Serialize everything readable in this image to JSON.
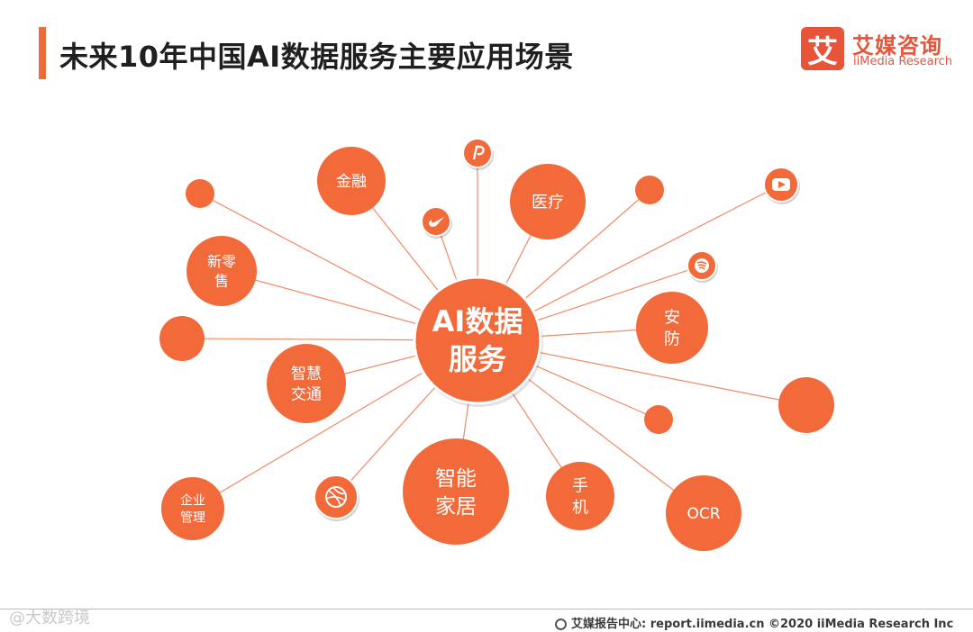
{
  "header": {
    "title": "未来10年中国AI数据服务主要应用场景"
  },
  "logo": {
    "mark": "艾",
    "name_cn": "艾媒咨询",
    "name_en": "iiMedia Research"
  },
  "diagram": {
    "center": {
      "lines": [
        "AI数据",
        "服务"
      ]
    },
    "colors": {
      "node": "#f26a3a",
      "line": "#f08a66",
      "icon_ring": "#ffffff"
    },
    "nodes": [
      {
        "id": "finance",
        "lines": [
          "金融"
        ]
      },
      {
        "id": "medical",
        "lines": [
          "医疗"
        ]
      },
      {
        "id": "new-retail",
        "lines": [
          "新零",
          "售"
        ]
      },
      {
        "id": "security",
        "lines": [
          "安",
          "防"
        ]
      },
      {
        "id": "smart-traffic",
        "lines": [
          "智慧",
          "交通"
        ]
      },
      {
        "id": "smart-home",
        "lines": [
          "智能",
          "家居"
        ]
      },
      {
        "id": "phone",
        "lines": [
          "手",
          "机"
        ]
      },
      {
        "id": "enterprise-mgmt",
        "lines": [
          "企业",
          "管理"
        ]
      },
      {
        "id": "ocr",
        "lines": [
          "OCR"
        ]
      },
      {
        "id": "blank-1",
        "lines": []
      },
      {
        "id": "blank-2",
        "lines": []
      },
      {
        "id": "blank-3",
        "lines": []
      },
      {
        "id": "blank-4",
        "lines": []
      },
      {
        "id": "blank-5",
        "lines": []
      }
    ],
    "icons": [
      {
        "id": "paypal",
        "name": "paypal-icon"
      },
      {
        "id": "nike",
        "name": "swoosh-icon"
      },
      {
        "id": "youtube",
        "name": "youtube-icon"
      },
      {
        "id": "spotify",
        "name": "spotify-icon"
      },
      {
        "id": "dribbble",
        "name": "dribbble-icon"
      }
    ]
  },
  "footer": {
    "watermark": "@大数跨境",
    "source": "艾媒报告中心: report.iimedia.cn   ©2020  iiMedia Research  Inc"
  }
}
